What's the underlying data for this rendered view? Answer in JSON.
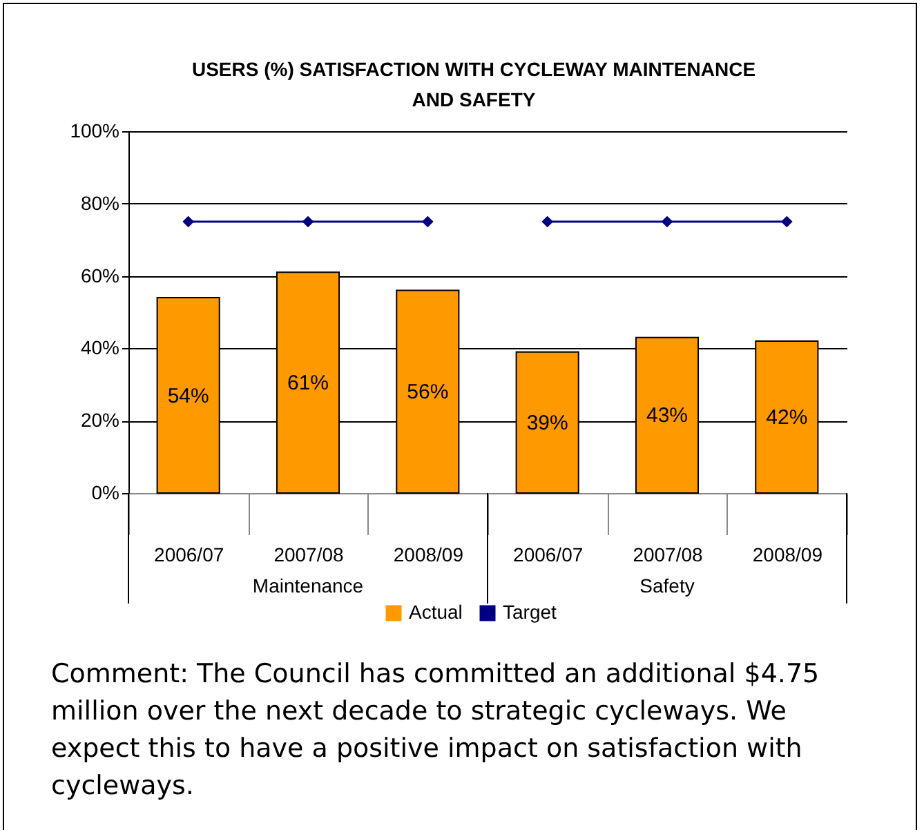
{
  "chart_data": {
    "type": "bar",
    "title": "USERS (%) SATISFACTION WITH CYCLEWAY MAINTENANCE AND SAFETY",
    "categories": [
      "2006/07",
      "2007/08",
      "2008/09",
      "2006/07",
      "2007/08",
      "2008/09"
    ],
    "series": [
      {
        "name": "Actual",
        "color": "#ff9900",
        "values": [
          54,
          61,
          56,
          39,
          43,
          42
        ],
        "value_labels": [
          "54%",
          "61%",
          "56%",
          "39%",
          "43%",
          "42%"
        ]
      },
      {
        "name": "Target",
        "type": "line",
        "color": "#000080",
        "values": [
          75,
          75,
          75,
          null,
          null,
          null
        ]
      },
      {
        "type": "line",
        "color": "#000080",
        "values": [
          null,
          null,
          null,
          75,
          75,
          75
        ]
      }
    ],
    "ylim": [
      0,
      100
    ],
    "yticks": [
      {
        "value": 0,
        "label": "0%"
      },
      {
        "value": 20,
        "label": "20%"
      },
      {
        "value": 40,
        "label": "40%"
      },
      {
        "value": 60,
        "label": "60%"
      },
      {
        "value": 80,
        "label": "80%"
      },
      {
        "value": 100,
        "label": "100%"
      }
    ],
    "grid": "y",
    "legend": "bottom",
    "marker": "diamond",
    "line_style": "solid",
    "annotations": [
      "Maintenance",
      "Safety",
      "Comment: The Council has committed an additional $4.75 million over the next decade to strategic cycleways.  We expect this to have a positive impact on satisfaction with cycleways."
    ]
  }
}
